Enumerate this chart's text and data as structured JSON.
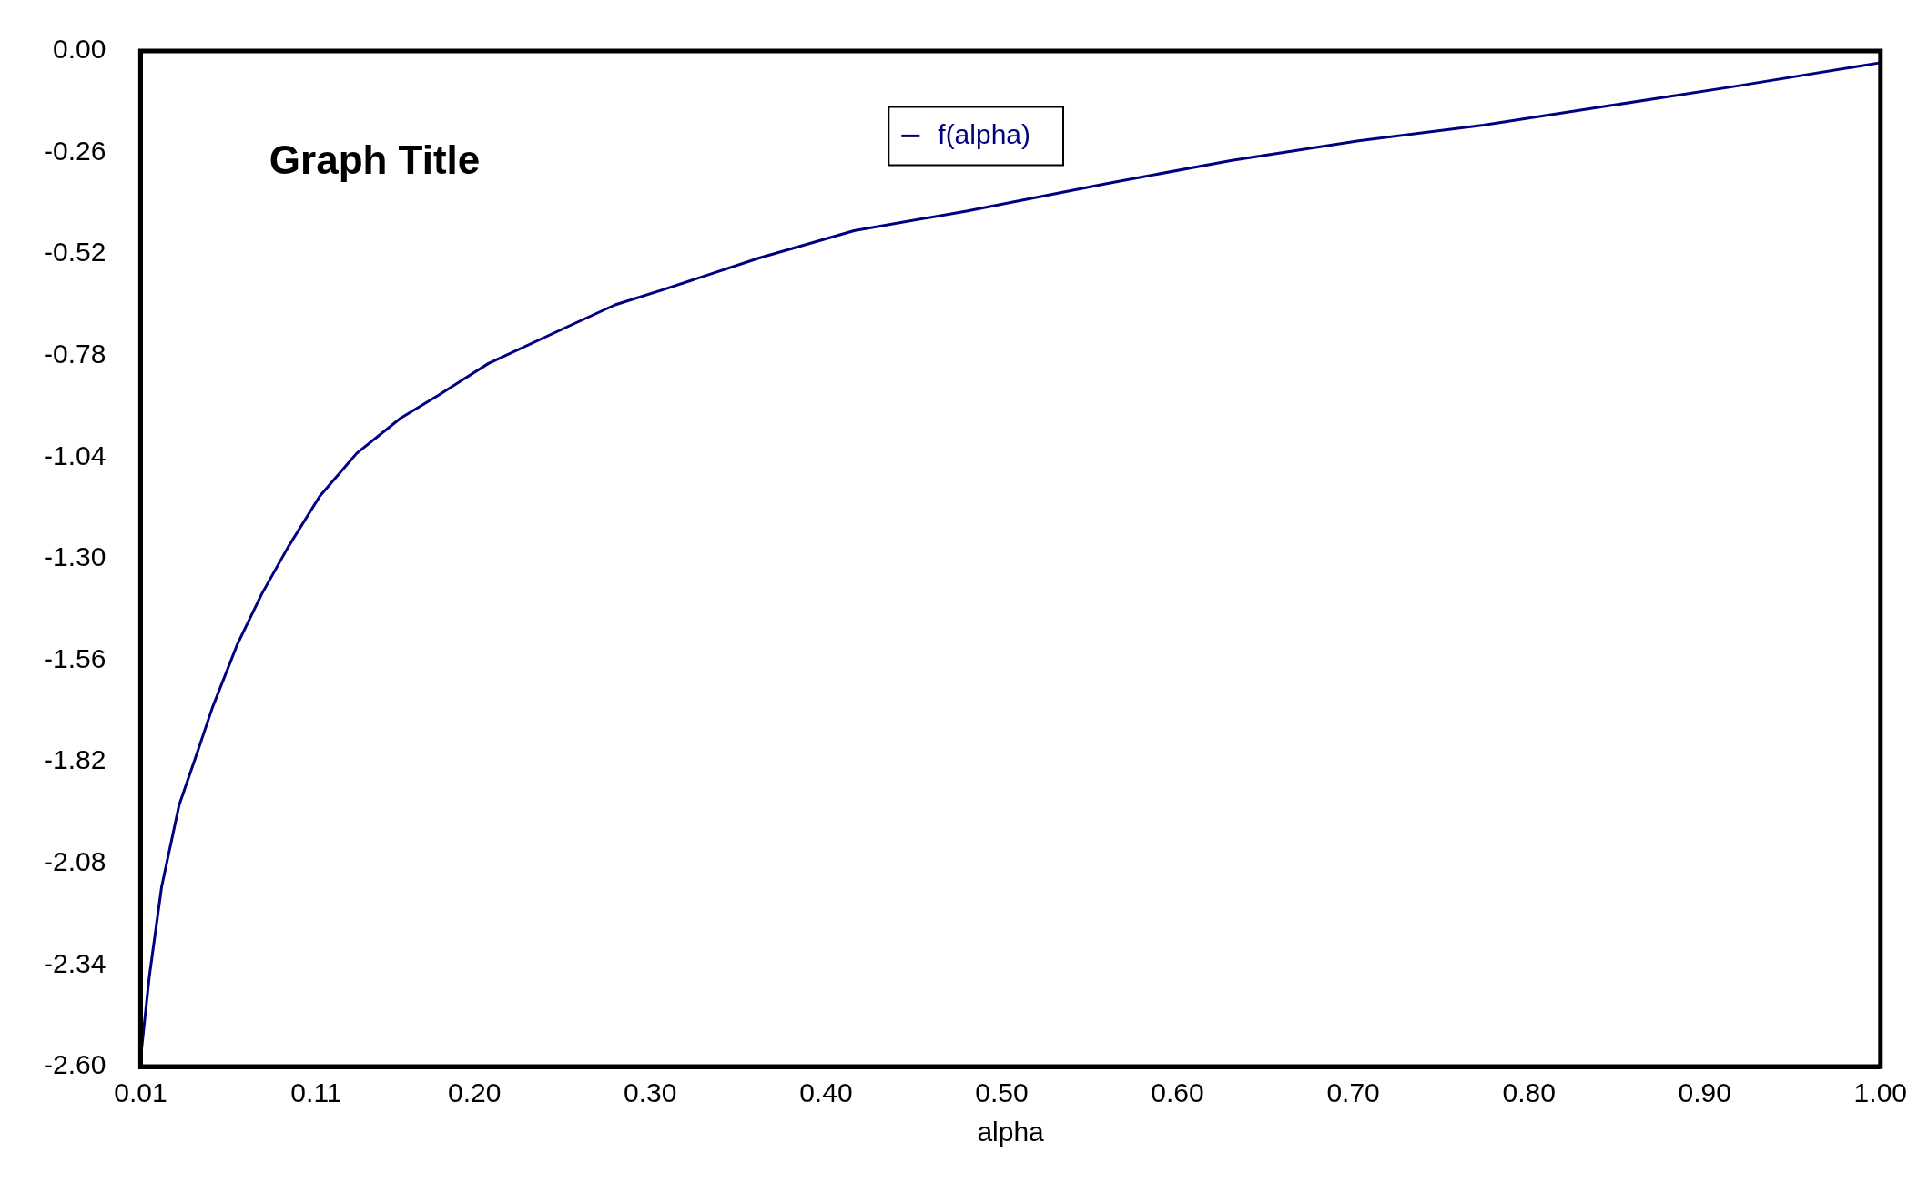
{
  "chart_data": {
    "type": "line",
    "title": "Graph Title",
    "xlabel": "alpha",
    "legend": "top",
    "grid": false,
    "marker": "none",
    "line_style": "solid",
    "xlim": [
      0.01,
      1.0
    ],
    "xticks": [
      0.01,
      0.11,
      {
        "value": 0.2,
        "label": "0.20"
      },
      {
        "value": 0.3,
        "label": "0.30"
      },
      {
        "value": 0.4,
        "label": "0.40"
      },
      {
        "value": 0.5,
        "label": "0.50"
      },
      {
        "value": 0.6,
        "label": "0.60"
      },
      {
        "value": 0.7,
        "label": "0.70"
      },
      {
        "value": 0.8,
        "label": "0.80"
      },
      {
        "value": 0.9,
        "label": "0.90"
      },
      {
        "value": 1.0,
        "label": "1.00"
      }
    ],
    "ylim": [
      -2.6,
      0
    ],
    "yticks": [
      {
        "value": 0,
        "label": "0.00"
      },
      -0.26,
      -0.52,
      -0.78,
      -1.04,
      {
        "value": -1.3,
        "label": "-1.30"
      },
      -1.56,
      -1.82,
      -2.08,
      -2.34,
      {
        "value": -2.6,
        "label": "-2.60"
      }
    ],
    "x": [
      0.01,
      0.015,
      0.022,
      0.032,
      0.042,
      0.051,
      0.065,
      0.079,
      0.094,
      0.112,
      0.133,
      0.158,
      0.18,
      0.208,
      0.251,
      0.28,
      0.308,
      0.362,
      0.416,
      0.48,
      0.559,
      0.631,
      0.703,
      0.774,
      0.846,
      0.918,
      1.0
    ],
    "series": [
      {
        "name": "f(alpha)",
        "color": "#000080",
        "values": [
          -2.58,
          -2.37,
          -2.14,
          -1.93,
          -1.8,
          -1.68,
          -1.52,
          -1.39,
          -1.27,
          -1.14,
          -1.03,
          -0.94,
          -0.88,
          -0.8,
          -0.71,
          -0.65,
          -0.61,
          -0.53,
          -0.46,
          -0.41,
          -0.34,
          -0.28,
          -0.23,
          -0.19,
          -0.14,
          -0.09,
          -0.03
        ]
      }
    ]
  }
}
